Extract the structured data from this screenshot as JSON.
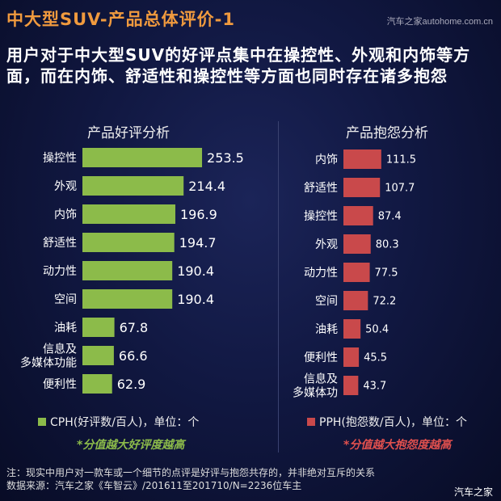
{
  "title": "中大型SUV-产品总体评价-1",
  "brand": "汽车之家autohome.com.cn",
  "subtitle": "用户对于中大型SUV的好评点集中在操控性、外观和内饰等方面，而在内饰、舒适性和操控性等方面也同时存在诸多抱怨",
  "colors": {
    "positive": "#8cbb4a",
    "negative": "#c9494b",
    "title": "#f09a3e"
  },
  "chart_data": [
    {
      "type": "bar",
      "orientation": "horizontal",
      "title": "产品好评分析",
      "categories": [
        "操控性",
        "外观",
        "内饰",
        "舒适性",
        "动力性",
        "空间",
        "油耗",
        "信息及\n多媒体功能",
        "便利性"
      ],
      "series": [
        {
          "name": "CPH(好评数/百人)，单位：个",
          "values": [
            253.5,
            214.4,
            196.9,
            194.7,
            190.4,
            190.4,
            67.8,
            66.6,
            62.9
          ]
        }
      ],
      "note": "*分值越大好评度越高"
    },
    {
      "type": "bar",
      "orientation": "horizontal",
      "title": "产品抱怨分析",
      "categories": [
        "内饰",
        "舒适性",
        "操控性",
        "外观",
        "动力性",
        "空间",
        "油耗",
        "便利性",
        "信息及\n多媒体功"
      ],
      "series": [
        {
          "name": "PPH(抱怨数/百人)，单位：个",
          "values": [
            111.5,
            107.7,
            87.4,
            80.3,
            77.5,
            72.2,
            50.4,
            45.5,
            43.7
          ]
        }
      ],
      "note": "*分值越大抱怨度越高"
    }
  ],
  "footnote": [
    "注：现实中用户对一款车或一个细节的点评是好评与抱怨共存的，并非绝对互斥的关系",
    "数据来源：汽车之家《车智云》/201611至201710/N=2236位车主"
  ],
  "watermark": "汽车之家"
}
